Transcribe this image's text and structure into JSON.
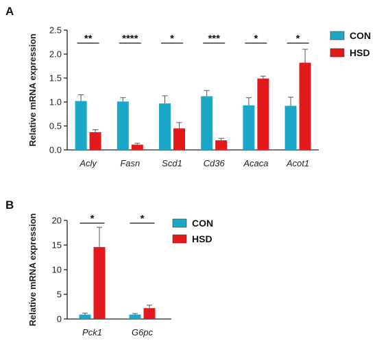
{
  "chart_data": [
    {
      "panel": "A",
      "type": "bar",
      "ylabel": "Relative mRNA expression",
      "ylim": [
        0,
        2.5
      ],
      "yticks": [
        "0.0",
        "0.5",
        "1.0",
        "1.5",
        "2.0",
        "2.5"
      ],
      "categories": [
        "Acly",
        "Fasn",
        "Scd1",
        "Cd36",
        "Acaca",
        "Acot1"
      ],
      "series": [
        {
          "name": "CON",
          "color": "#1aa7c8",
          "values": [
            1.02,
            1.01,
            0.97,
            1.12,
            0.93,
            0.92
          ],
          "errors": [
            0.13,
            0.08,
            0.16,
            0.12,
            0.16,
            0.18
          ]
        },
        {
          "name": "HSD",
          "color": "#e31a1c",
          "values": [
            0.37,
            0.11,
            0.45,
            0.2,
            1.49,
            1.82
          ],
          "errors": [
            0.05,
            0.03,
            0.12,
            0.04,
            0.05,
            0.28
          ]
        }
      ],
      "significance": [
        "**",
        "****",
        "*",
        "***",
        "*",
        "*"
      ],
      "legend": "right"
    },
    {
      "panel": "B",
      "type": "bar",
      "ylabel": "Relative mRNA expression",
      "ylim": [
        0,
        20
      ],
      "yticks": [
        "0",
        "5",
        "10",
        "15",
        "20"
      ],
      "categories": [
        "Pck1",
        "G6pc"
      ],
      "series": [
        {
          "name": "CON",
          "color": "#1aa7c8",
          "values": [
            0.9,
            0.9
          ],
          "errors": [
            0.3,
            0.2
          ]
        },
        {
          "name": "HSD",
          "color": "#e31a1c",
          "values": [
            14.6,
            2.2
          ],
          "errors": [
            4.0,
            0.6
          ]
        }
      ],
      "significance": [
        "*",
        "*"
      ],
      "legend": "right"
    }
  ]
}
